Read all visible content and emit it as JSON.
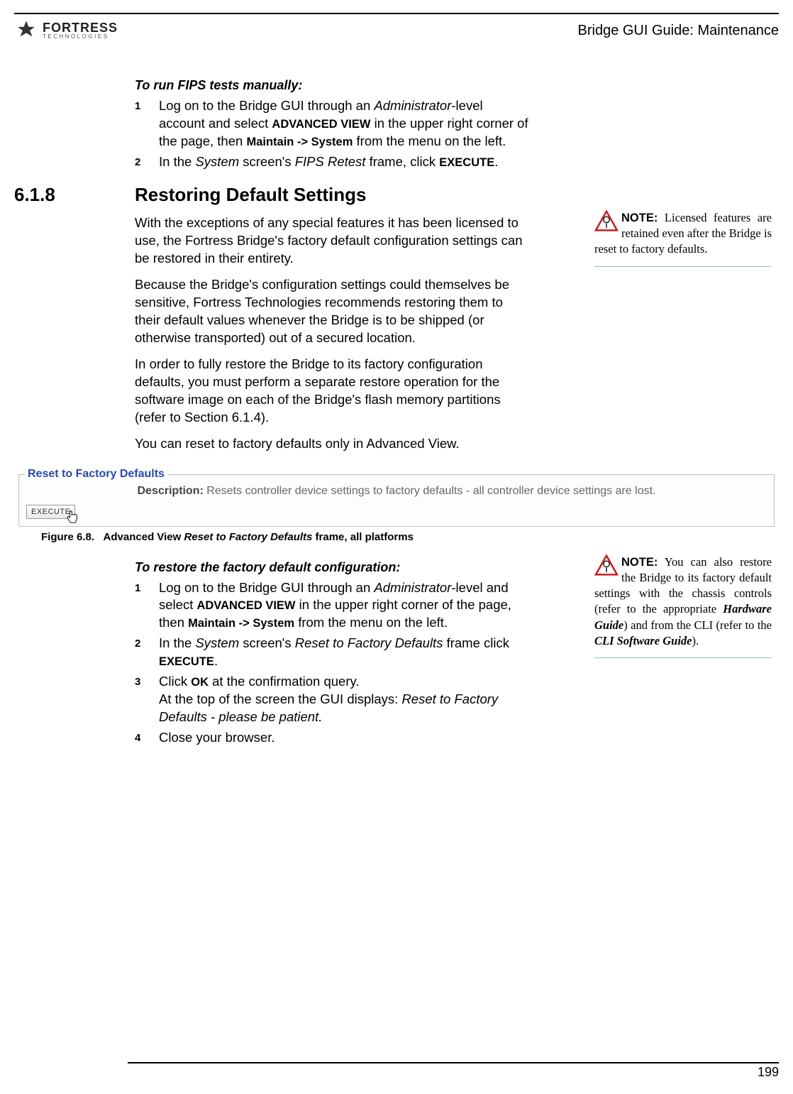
{
  "header": {
    "brand_main": "FORTRESS",
    "brand_sub": "TECHNOLOGIES",
    "section_title": "Bridge GUI Guide: Maintenance"
  },
  "fips": {
    "heading": "To run FIPS tests manually:",
    "steps": [
      {
        "n": "1",
        "html": "Log on to the Bridge GUI through an <span class='ital'>Administrator</span>-level account and select <span class='smallcaps'>ADVANCED VIEW</span> in the upper right corner of the page, then <span class='bold-sans'>Maintain -&gt; System</span> from the menu on the left."
      },
      {
        "n": "2",
        "html": "In the <span class='ital'>System</span> screen's <span class='ital'>FIPS Retest</span> frame, click <span class='smallcaps'>EXECUTE</span>."
      }
    ]
  },
  "section": {
    "num": "6.1.8",
    "title": "Restoring Default Settings",
    "paras": [
      "With the exceptions of any special features it has been licensed to use, the Fortress Bridge's factory default configuration settings can be restored in their entirety.",
      "Because the Bridge's configuration settings could themselves be sensitive, Fortress Technologies recommends restoring them to their default values whenever the Bridge is to be shipped (or otherwise transported) out of a secured location.",
      "In order to fully restore the Bridge to its factory configuration defaults, you must perform a separate restore operation for the software image on each of the Bridge's flash memory partitions (refer to Section 6.1.4).",
      "You can reset to factory defaults only in Advanced View."
    ],
    "note1": "Licensed features are retained even after the Bridge is reset to factory defaults."
  },
  "panel": {
    "legend": "Reset to Factory Defaults",
    "desc_label": "Description:",
    "desc_text": "Resets controller device settings to factory defaults - all controller device settings are lost.",
    "button": "EXECUTE",
    "caption_num": "Figure 6.8.",
    "caption_pre": "Advanced View ",
    "caption_ital": "Reset to Factory Defaults",
    "caption_post": " frame, all platforms"
  },
  "restore": {
    "heading": "To restore the factory default configuration:",
    "steps": [
      {
        "n": "1",
        "html": "Log on to the Bridge GUI through an <span class='ital'>Administrator</span>-level and select <span class='smallcaps'>ADVANCED VIEW</span> in the upper right corner of the page, then <span class='bold-sans'>Maintain -&gt; System</span> from the menu on the left."
      },
      {
        "n": "2",
        "html": "In the <span class='ital'>System</span> screen's <span class='ital'>Reset to Factory Defaults</span> frame click <span class='smallcaps'>EXECUTE</span>."
      },
      {
        "n": "3",
        "html": "Click <span class='smallcaps' style='font-variant:normal;font-weight:bold;'>OK</span> at the confirmation query.<br>At the top of the screen the GUI displays: <span class='ital'>Reset to Factory Defaults - please be patient.</span>"
      },
      {
        "n": "4",
        "html": "Close your browser."
      }
    ],
    "note2": "You can also restore the Bridge to its factory default settings with the chassis controls (refer to the appropriate <span class='note-ital'>Hardware Guide</span>) and from the CLI (refer to the <span class='note-ital'>CLI Software Guide</span>)."
  },
  "footer": {
    "page": "199"
  },
  "colors": {
    "legend": "#2a4aa8",
    "note_rule": "#9bb8d3",
    "warn_stroke": "#c81e1e"
  }
}
